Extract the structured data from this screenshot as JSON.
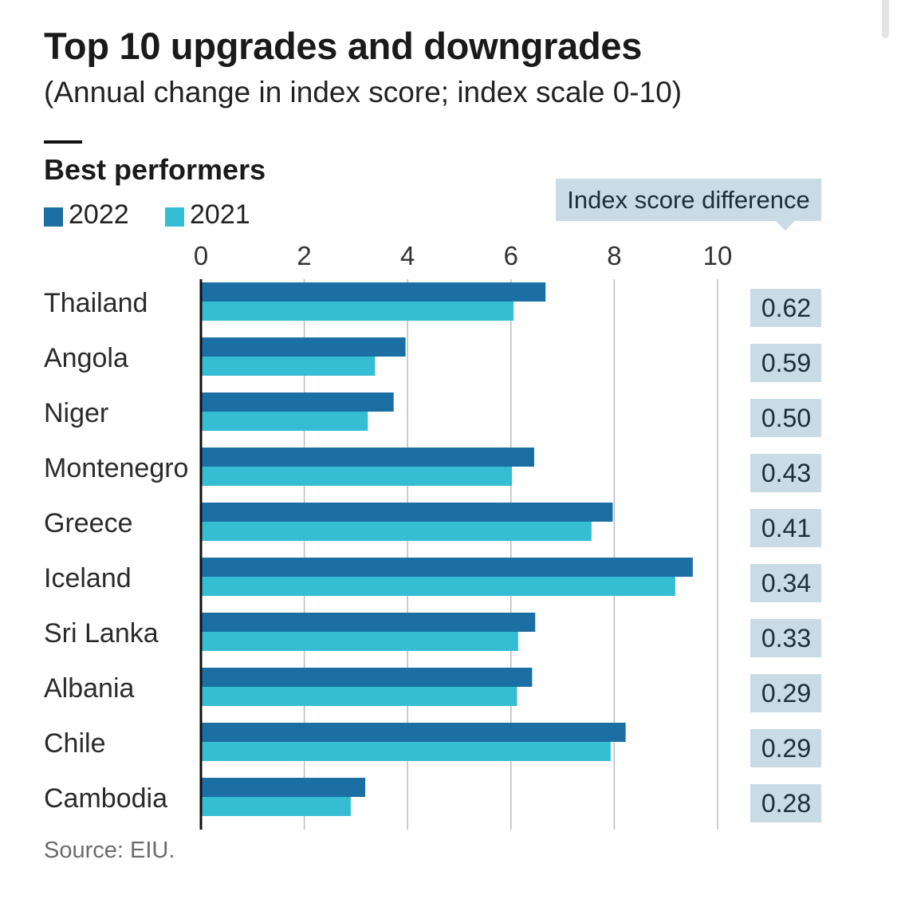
{
  "colors": {
    "series_2022": "#1b6fa3",
    "series_2021": "#35bdd3",
    "diff_box": "#c9dbe5",
    "gridline": "#b7bdc2",
    "text": "#1a1a1a"
  },
  "chart_data": {
    "type": "bar",
    "orientation": "horizontal",
    "title": "Top 10 upgrades and downgrades",
    "subtitle": "(Annual change in index score; index scale 0-10)",
    "section_title": "Best performers",
    "categories": [
      "Thailand",
      "Angola",
      "Niger",
      "Montenegro",
      "Greece",
      "Iceland",
      "Sri Lanka",
      "Albania",
      "Chile",
      "Cambodia"
    ],
    "series": [
      {
        "name": "2022",
        "values": [
          6.67,
          3.96,
          3.73,
          6.45,
          7.97,
          9.52,
          6.47,
          6.41,
          8.22,
          3.18
        ]
      },
      {
        "name": "2021",
        "values": [
          6.05,
          3.37,
          3.23,
          6.02,
          7.56,
          9.18,
          6.14,
          6.12,
          7.93,
          2.9
        ]
      }
    ],
    "difference_header": "Index score difference",
    "differences": [
      "0.62",
      "0.59",
      "0.50",
      "0.43",
      "0.41",
      "0.34",
      "0.33",
      "0.29",
      "0.29",
      "0.28"
    ],
    "xlim": [
      0,
      10
    ],
    "xticks": [
      0,
      2,
      4,
      6,
      8,
      10
    ],
    "grid": true,
    "legend_placement": "top-left",
    "source": "Source: EIU."
  }
}
